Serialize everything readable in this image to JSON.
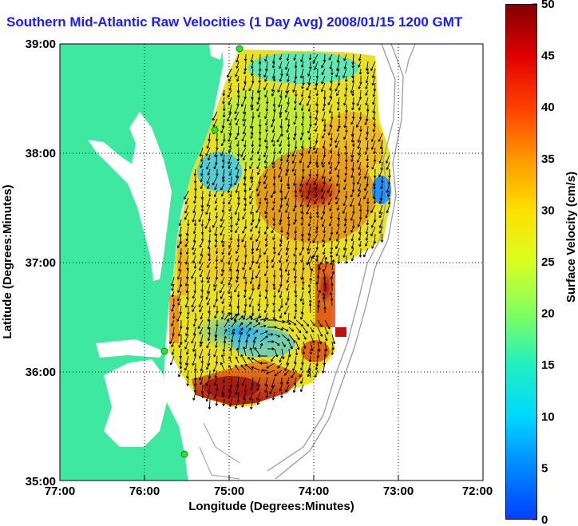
{
  "title": "Southern Mid-Atlantic Raw Velocities (1 Day Avg) 2008/01/15 1200 GMT",
  "xaxis": {
    "label": "Longitude (Degrees:Minutes)",
    "ticks": [
      "77:00",
      "76:00",
      "75:00",
      "74:00",
      "73:00",
      "72:00"
    ]
  },
  "yaxis": {
    "label": "Latitude (Degrees:Minutes)",
    "ticks": [
      "35:00",
      "36:00",
      "37:00",
      "38:00",
      "39:00"
    ]
  },
  "colorbar": {
    "label": "Surface Velocity (cm/s)",
    "ticks": [
      "0",
      "5",
      "10",
      "15",
      "20",
      "25",
      "30",
      "35",
      "40",
      "45",
      "50"
    ]
  },
  "chart_data": {
    "type": "heatmap",
    "title": "Southern Mid-Atlantic Raw Velocities (1 Day Avg) 2008/01/15 1200 GMT",
    "xlabel": "Longitude (Degrees:Minutes)",
    "ylabel": "Latitude (Degrees:Minutes)",
    "xlim": [
      -77,
      -72
    ],
    "ylim": [
      35,
      39
    ],
    "grid": true,
    "colorbar": {
      "label": "Surface Velocity (cm/s)",
      "range": [
        0,
        50
      ]
    }
  }
}
